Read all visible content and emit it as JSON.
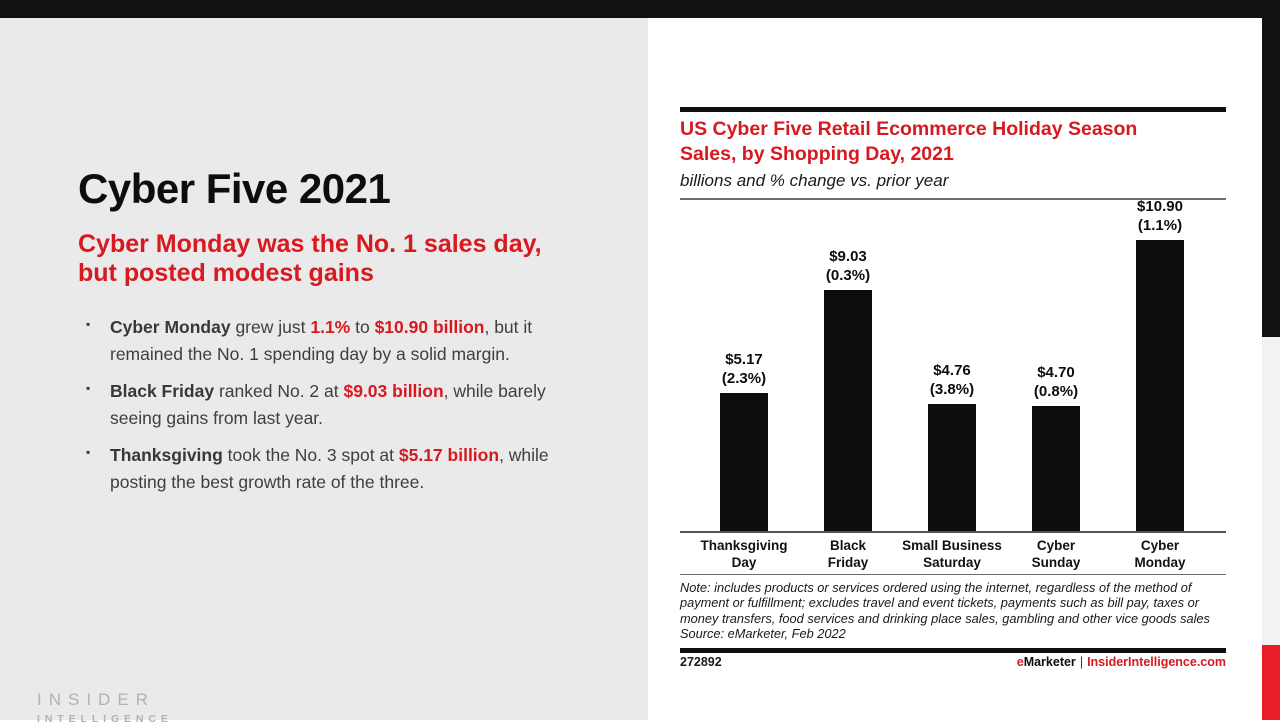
{
  "slide": {
    "title": "Cyber Five 2021",
    "subtitle": "Cyber Monday was the No. 1 sales day, but posted modest gains",
    "bullet_marker": "▪",
    "bullets": [
      {
        "segments": [
          {
            "t": "Cyber Monday ",
            "s": "b"
          },
          {
            "t": "grew just ",
            "s": "n"
          },
          {
            "t": "1.1%",
            "s": "r"
          },
          {
            "t": " to ",
            "s": "n"
          },
          {
            "t": "$10.90 billion",
            "s": "r"
          },
          {
            "t": ", but it remained the No. 1 spending day by a solid margin.",
            "s": "n"
          }
        ]
      },
      {
        "segments": [
          {
            "t": "Black Friday ",
            "s": "b"
          },
          {
            "t": "ranked No. 2 at ",
            "s": "n"
          },
          {
            "t": "$9.03 billion",
            "s": "r"
          },
          {
            "t": ", while barely seeing gains from last year.",
            "s": "n"
          }
        ]
      },
      {
        "segments": [
          {
            "t": "Thanksgiving ",
            "s": "b"
          },
          {
            "t": "took the No. 3 spot at ",
            "s": "n"
          },
          {
            "t": "$5.17 billion",
            "s": "r"
          },
          {
            "t": ", while posting the best growth rate of the three.",
            "s": "n"
          }
        ]
      }
    ],
    "logo": {
      "line1": "INSIDER",
      "line2": "INTELLIGENCE"
    }
  },
  "chart_data": {
    "type": "bar",
    "title": "US Cyber Five Retail Ecommerce Holiday Season Sales, by Shopping Day, 2021",
    "subtitle": "billions and % change vs. prior year",
    "categories": [
      "Thanksgiving Day",
      "Black Friday",
      "Small Business Saturday",
      "Cyber Sunday",
      "Cyber Monday"
    ],
    "values": [
      5.17,
      9.03,
      4.76,
      4.7,
      10.9
    ],
    "pct_change": [
      2.3,
      0.3,
      3.8,
      0.8,
      1.1
    ],
    "bars": [
      {
        "category": "Thanksgiving Day",
        "value": 5.17,
        "label_dollar": "$5.17",
        "label_pct": "(2.3%)",
        "axis_label": "Thanksgiving\nDay"
      },
      {
        "category": "Black Friday",
        "value": 9.03,
        "label_dollar": "$9.03",
        "label_pct": "(0.3%)",
        "axis_label": "Black\nFriday"
      },
      {
        "category": "Small Business Saturday",
        "value": 4.76,
        "label_dollar": "$4.76",
        "label_pct": "(3.8%)",
        "axis_label": "Small Business\nSaturday"
      },
      {
        "category": "Cyber Sunday",
        "value": 4.7,
        "label_dollar": "$4.70",
        "label_pct": "(0.8%)",
        "axis_label": "Cyber\nSunday"
      },
      {
        "category": "Cyber Monday",
        "value": 10.9,
        "label_dollar": "$10.90",
        "label_pct": "(1.1%)",
        "axis_label": "Cyber\nMonday"
      }
    ],
    "xlabel": "",
    "ylabel": "",
    "ylim": [
      0,
      12
    ],
    "grid": false,
    "legend": false,
    "bar_color": "#0d0d0d",
    "note": "Note: includes products or services ordered using the internet, regardless of the method of payment or fulfillment; excludes travel and event tickets, payments such as bill pay, taxes or money transfers, food services and drinking place sales, gambling and other vice goods sales",
    "source": "Source: eMarketer, Feb 2022",
    "chart_id": "272892",
    "footer": {
      "emarketer_e": "e",
      "emarketer_rest": "Marketer",
      "separator": "|",
      "site": "InsiderIntelligence.com"
    }
  },
  "colors": {
    "accent_red": "#D71920",
    "bar": "#0d0d0d",
    "left_panel_gray": "#EAEAEA",
    "top_bar_black": "#121212",
    "strip_gray": "#F2F2F3",
    "strip_red": "#E91D26",
    "logo_gray": "#B2B2B2"
  }
}
